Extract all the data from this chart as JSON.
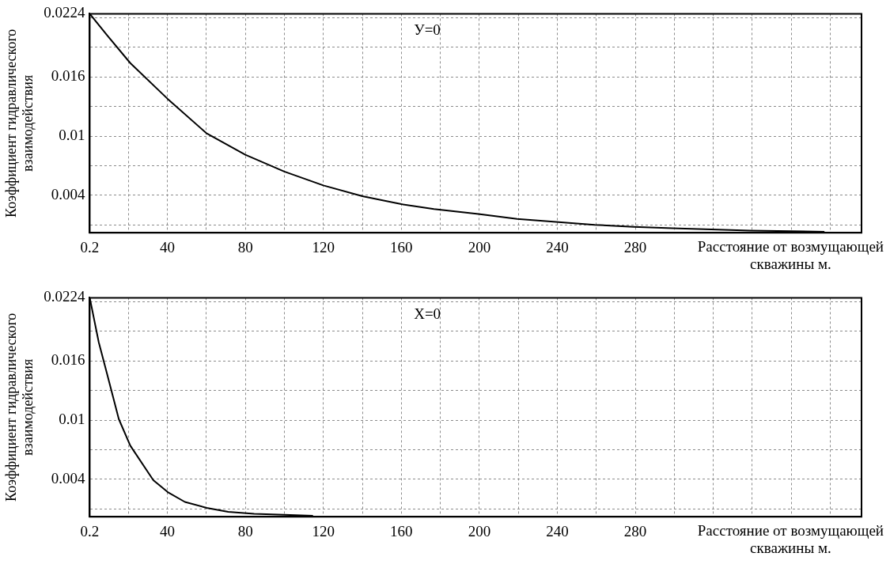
{
  "chart_data": [
    {
      "type": "line",
      "annotations": [
        "У=0"
      ],
      "xlabel": "Расстояние от возмущающей скважины м.",
      "ylabel": "Коэффициент гидравлического взаимодействия",
      "xlim": [
        0.2,
        396
      ],
      "ylim": [
        0.0002,
        0.0224
      ],
      "xticks": [
        0.2,
        {
          "value": 20,
          "label": null
        },
        40,
        {
          "value": 60,
          "label": null
        },
        80,
        {
          "value": 100,
          "label": null
        },
        120,
        {
          "value": 140,
          "label": null
        },
        160,
        {
          "value": 180,
          "label": null
        },
        200,
        {
          "value": 220,
          "label": null
        },
        240,
        {
          "value": 260,
          "label": null
        },
        280,
        {
          "value": 300,
          "label": null
        },
        {
          "value": 320,
          "label": null
        },
        {
          "value": 340,
          "label": null
        },
        {
          "value": 360,
          "label": null
        },
        {
          "value": 380,
          "label": null
        }
      ],
      "yticks": [
        {
          "value": 0.001,
          "label": null
        },
        0.004,
        {
          "value": 0.007,
          "label": null
        },
        0.01,
        {
          "value": 0.013,
          "label": null
        },
        0.016,
        {
          "value": 0.019,
          "label": null
        },
        {
          "value": 0.022,
          "label": null
        },
        0.0224
      ],
      "grid": true,
      "series": [
        {
          "color": "#000000",
          "x": [
            0.2,
            9.2,
            21,
            40,
            60,
            80,
            100,
            120,
            140,
            160,
            176.7,
            199.5,
            219.4,
            239.3,
            259.2,
            279,
            299,
            318.9,
            338.7,
            377
          ],
          "values": [
            0.0224,
            0.0202,
            0.0174,
            0.0138,
            0.0103,
            0.0081,
            0.0064,
            0.005,
            0.0039,
            0.0031,
            0.0026,
            0.0021,
            0.0016,
            0.0013,
            0.001,
            0.0008,
            0.00066,
            0.00054,
            0.00042,
            0.0003
          ]
        }
      ]
    },
    {
      "type": "line",
      "annotations": [
        "X=0"
      ],
      "xlabel": "Расстояние от возмущающей скважины м.",
      "ylabel": "Коэффициент гидравлического взаимодействия",
      "xlim": [
        0.2,
        396
      ],
      "ylim": [
        0.0002,
        0.0224
      ],
      "xticks": [
        0.2,
        {
          "value": 20,
          "label": null
        },
        40,
        {
          "value": 60,
          "label": null
        },
        80,
        {
          "value": 100,
          "label": null
        },
        120,
        {
          "value": 140,
          "label": null
        },
        160,
        {
          "value": 180,
          "label": null
        },
        200,
        {
          "value": 220,
          "label": null
        },
        240,
        {
          "value": 260,
          "label": null
        },
        280,
        {
          "value": 300,
          "label": null
        },
        {
          "value": 320,
          "label": null
        },
        {
          "value": 340,
          "label": null
        },
        {
          "value": 360,
          "label": null
        },
        {
          "value": 380,
          "label": null
        }
      ],
      "yticks": [
        {
          "value": 0.001,
          "label": null
        },
        0.004,
        {
          "value": 0.007,
          "label": null
        },
        0.01,
        {
          "value": 0.013,
          "label": null
        },
        0.016,
        {
          "value": 0.019,
          "label": null
        },
        {
          "value": 0.022,
          "label": null
        },
        0.0224
      ],
      "grid": true,
      "series": [
        {
          "color": "#000000",
          "x": [
            0.2,
            4.8,
            9.2,
            15.1,
            21,
            32.8,
            40.2,
            49,
            60.1,
            71.2,
            84.5,
            100,
            114.7
          ],
          "values": [
            0.0224,
            0.0179,
            0.0146,
            0.0101,
            0.0074,
            0.0039,
            0.0027,
            0.0017,
            0.0011,
            0.0007,
            0.0005,
            0.0004,
            0.0003
          ]
        }
      ]
    }
  ]
}
